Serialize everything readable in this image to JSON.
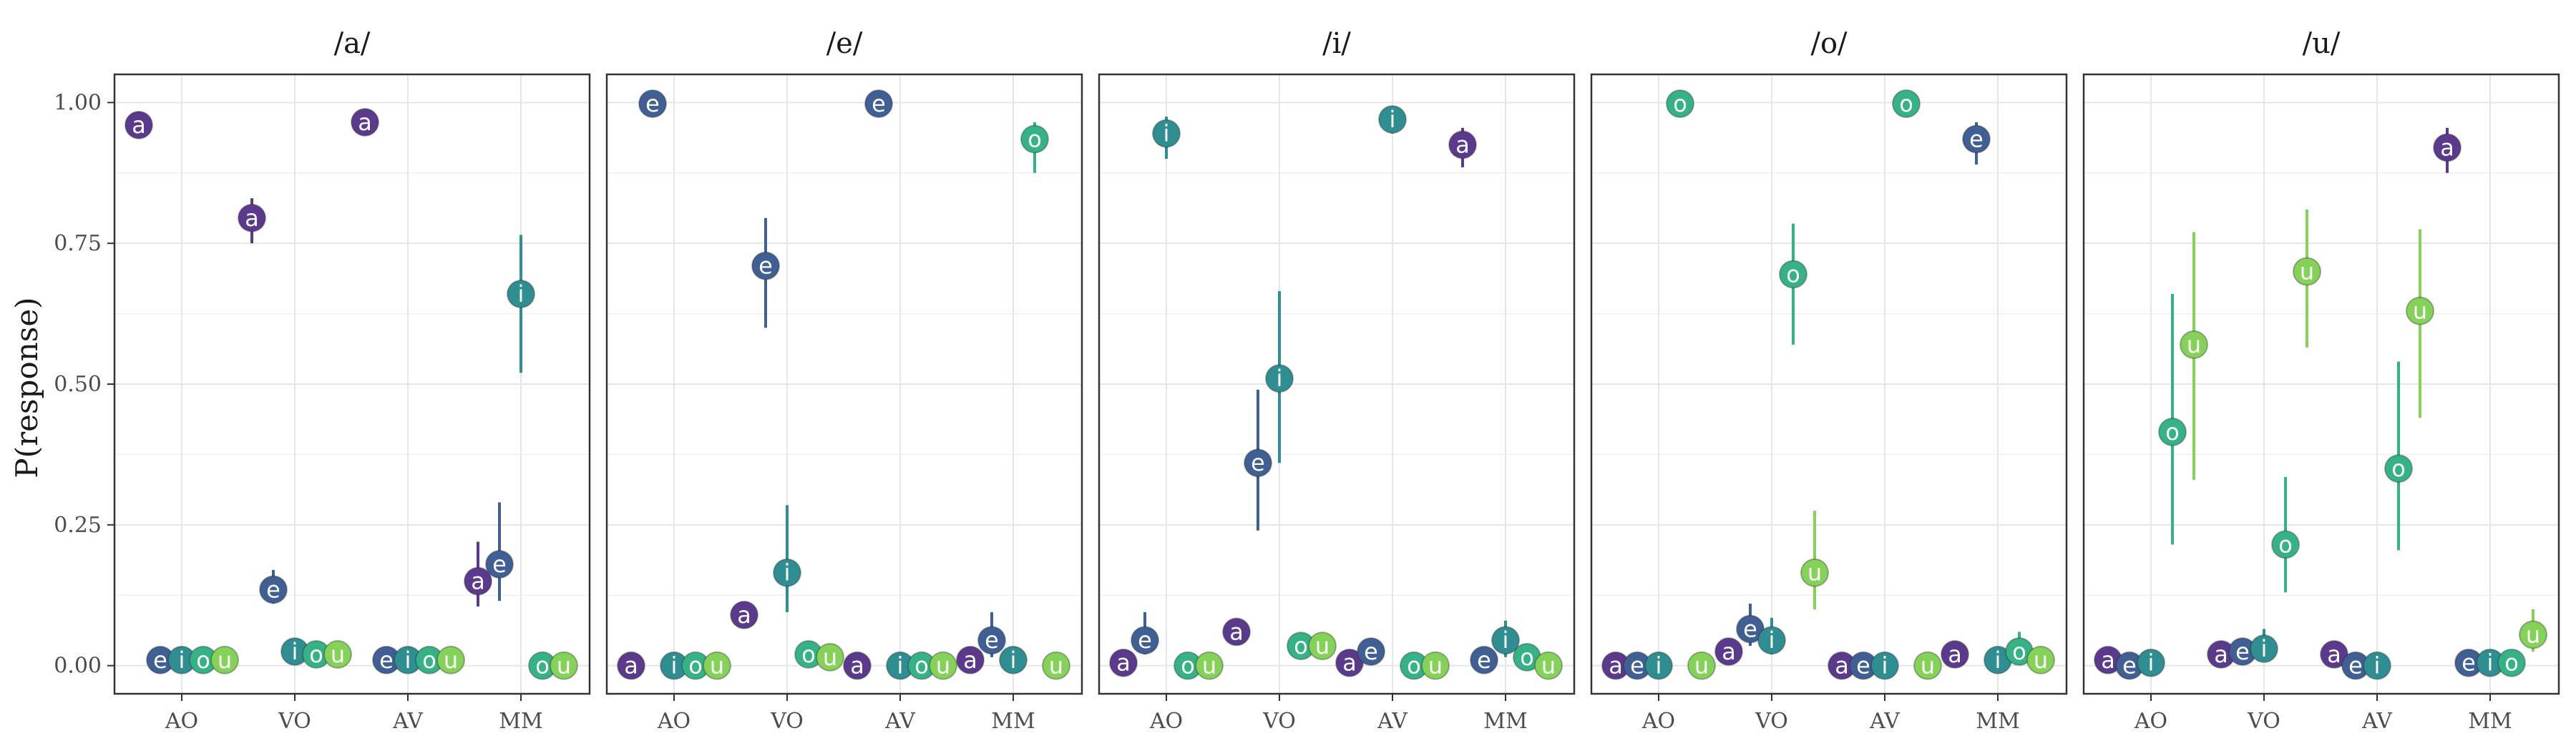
{
  "chart_data": {
    "type": "scatter",
    "ylabel": "P(response)",
    "ylim": [
      -0.05,
      1.05
    ],
    "y_ticks": [
      0,
      0.25,
      0.5,
      0.75,
      1
    ],
    "y_tick_labels": [
      "0.00",
      "0.25",
      "0.50",
      "0.75",
      "1.00"
    ],
    "conditions": [
      "AO",
      "VO",
      "AV",
      "MM"
    ],
    "responses": [
      "a",
      "e",
      "i",
      "o",
      "u"
    ],
    "response_colors": {
      "a": "#5b3a8e",
      "e": "#3f5f95",
      "i": "#2f8e92",
      "o": "#35b387",
      "u": "#84d257"
    },
    "grid": true,
    "legend": "none",
    "facets": [
      {
        "title": "/a/",
        "points": [
          {
            "condition": "AO",
            "response": "a",
            "y": 0.96,
            "ymin": 0.94,
            "ymax": 0.975
          },
          {
            "condition": "AO",
            "response": "e",
            "y": 0.01
          },
          {
            "condition": "AO",
            "response": "i",
            "y": 0.01
          },
          {
            "condition": "AO",
            "response": "o",
            "y": 0.01
          },
          {
            "condition": "AO",
            "response": "u",
            "y": 0.01
          },
          {
            "condition": "VO",
            "response": "a",
            "y": 0.795,
            "ymin": 0.75,
            "ymax": 0.83
          },
          {
            "condition": "VO",
            "response": "e",
            "y": 0.135,
            "ymin": 0.11,
            "ymax": 0.17
          },
          {
            "condition": "VO",
            "response": "i",
            "y": 0.025
          },
          {
            "condition": "VO",
            "response": "o",
            "y": 0.02
          },
          {
            "condition": "VO",
            "response": "u",
            "y": 0.02
          },
          {
            "condition": "AV",
            "response": "a",
            "y": 0.965,
            "ymin": 0.945,
            "ymax": 0.98
          },
          {
            "condition": "AV",
            "response": "e",
            "y": 0.01
          },
          {
            "condition": "AV",
            "response": "i",
            "y": 0.01
          },
          {
            "condition": "AV",
            "response": "o",
            "y": 0.01
          },
          {
            "condition": "AV",
            "response": "u",
            "y": 0.01
          },
          {
            "condition": "MM",
            "response": "a",
            "y": 0.15,
            "ymin": 0.105,
            "ymax": 0.22
          },
          {
            "condition": "MM",
            "response": "e",
            "y": 0.18,
            "ymin": 0.115,
            "ymax": 0.29
          },
          {
            "condition": "MM",
            "response": "i",
            "y": 0.66,
            "ymin": 0.52,
            "ymax": 0.765
          },
          {
            "condition": "MM",
            "response": "o",
            "y": 0.0
          },
          {
            "condition": "MM",
            "response": "u",
            "y": 0.0
          }
        ]
      },
      {
        "title": "/e/",
        "points": [
          {
            "condition": "AO",
            "response": "a",
            "y": 0.0
          },
          {
            "condition": "AO",
            "response": "e",
            "y": 0.998
          },
          {
            "condition": "AO",
            "response": "i",
            "y": 0.0
          },
          {
            "condition": "AO",
            "response": "o",
            "y": 0.0
          },
          {
            "condition": "AO",
            "response": "u",
            "y": 0.0
          },
          {
            "condition": "VO",
            "response": "a",
            "y": 0.09
          },
          {
            "condition": "VO",
            "response": "e",
            "y": 0.71,
            "ymin": 0.6,
            "ymax": 0.795
          },
          {
            "condition": "VO",
            "response": "i",
            "y": 0.165,
            "ymin": 0.095,
            "ymax": 0.285
          },
          {
            "condition": "VO",
            "response": "o",
            "y": 0.02
          },
          {
            "condition": "VO",
            "response": "u",
            "y": 0.015
          },
          {
            "condition": "AV",
            "response": "a",
            "y": 0.0
          },
          {
            "condition": "AV",
            "response": "e",
            "y": 0.998
          },
          {
            "condition": "AV",
            "response": "i",
            "y": 0.0
          },
          {
            "condition": "AV",
            "response": "o",
            "y": 0.0
          },
          {
            "condition": "AV",
            "response": "u",
            "y": 0.0
          },
          {
            "condition": "MM",
            "response": "a",
            "y": 0.01
          },
          {
            "condition": "MM",
            "response": "e",
            "y": 0.045,
            "ymin": 0.015,
            "ymax": 0.095
          },
          {
            "condition": "MM",
            "response": "i",
            "y": 0.01
          },
          {
            "condition": "MM",
            "response": "o",
            "y": 0.935,
            "ymin": 0.875,
            "ymax": 0.965
          },
          {
            "condition": "MM",
            "response": "u",
            "y": 0.0
          }
        ]
      },
      {
        "title": "/i/",
        "points": [
          {
            "condition": "AO",
            "response": "a",
            "y": 0.005
          },
          {
            "condition": "AO",
            "response": "e",
            "y": 0.045,
            "ymin": 0.02,
            "ymax": 0.095
          },
          {
            "condition": "AO",
            "response": "i",
            "y": 0.945,
            "ymin": 0.9,
            "ymax": 0.975
          },
          {
            "condition": "AO",
            "response": "o",
            "y": 0.0
          },
          {
            "condition": "AO",
            "response": "u",
            "y": 0.0
          },
          {
            "condition": "VO",
            "response": "a",
            "y": 0.06
          },
          {
            "condition": "VO",
            "response": "e",
            "y": 0.36,
            "ymin": 0.24,
            "ymax": 0.49
          },
          {
            "condition": "VO",
            "response": "i",
            "y": 0.51,
            "ymin": 0.36,
            "ymax": 0.665
          },
          {
            "condition": "VO",
            "response": "o",
            "y": 0.035
          },
          {
            "condition": "VO",
            "response": "u",
            "y": 0.035
          },
          {
            "condition": "AV",
            "response": "a",
            "y": 0.005
          },
          {
            "condition": "AV",
            "response": "e",
            "y": 0.025
          },
          {
            "condition": "AV",
            "response": "i",
            "y": 0.97,
            "ymin": 0.945,
            "ymax": 0.985
          },
          {
            "condition": "AV",
            "response": "o",
            "y": 0.0
          },
          {
            "condition": "AV",
            "response": "u",
            "y": 0.0
          },
          {
            "condition": "MM",
            "response": "a",
            "y": 0.925,
            "ymin": 0.885,
            "ymax": 0.955
          },
          {
            "condition": "MM",
            "response": "e",
            "y": 0.01
          },
          {
            "condition": "MM",
            "response": "i",
            "y": 0.045,
            "ymin": 0.015,
            "ymax": 0.08
          },
          {
            "condition": "MM",
            "response": "o",
            "y": 0.015
          },
          {
            "condition": "MM",
            "response": "u",
            "y": 0.0
          }
        ]
      },
      {
        "title": "/o/",
        "points": [
          {
            "condition": "AO",
            "response": "a",
            "y": 0.0
          },
          {
            "condition": "AO",
            "response": "e",
            "y": 0.0
          },
          {
            "condition": "AO",
            "response": "i",
            "y": 0.0
          },
          {
            "condition": "AO",
            "response": "o",
            "y": 0.998
          },
          {
            "condition": "AO",
            "response": "u",
            "y": 0.0
          },
          {
            "condition": "VO",
            "response": "a",
            "y": 0.025
          },
          {
            "condition": "VO",
            "response": "e",
            "y": 0.065,
            "ymin": 0.035,
            "ymax": 0.11
          },
          {
            "condition": "VO",
            "response": "i",
            "y": 0.045,
            "ymin": 0.02,
            "ymax": 0.085
          },
          {
            "condition": "VO",
            "response": "o",
            "y": 0.695,
            "ymin": 0.57,
            "ymax": 0.785
          },
          {
            "condition": "VO",
            "response": "u",
            "y": 0.165,
            "ymin": 0.1,
            "ymax": 0.275
          },
          {
            "condition": "AV",
            "response": "a",
            "y": 0.0
          },
          {
            "condition": "AV",
            "response": "e",
            "y": 0.0
          },
          {
            "condition": "AV",
            "response": "i",
            "y": 0.0
          },
          {
            "condition": "AV",
            "response": "o",
            "y": 0.998
          },
          {
            "condition": "AV",
            "response": "u",
            "y": 0.0
          },
          {
            "condition": "MM",
            "response": "a",
            "y": 0.02
          },
          {
            "condition": "MM",
            "response": "e",
            "y": 0.935,
            "ymin": 0.89,
            "ymax": 0.965
          },
          {
            "condition": "MM",
            "response": "i",
            "y": 0.01
          },
          {
            "condition": "MM",
            "response": "o",
            "y": 0.025,
            "ymin": 0.005,
            "ymax": 0.06
          },
          {
            "condition": "MM",
            "response": "u",
            "y": 0.01
          }
        ]
      },
      {
        "title": "/u/",
        "points": [
          {
            "condition": "AO",
            "response": "a",
            "y": 0.01
          },
          {
            "condition": "AO",
            "response": "e",
            "y": 0.0
          },
          {
            "condition": "AO",
            "response": "i",
            "y": 0.005
          },
          {
            "condition": "AO",
            "response": "o",
            "y": 0.415,
            "ymin": 0.215,
            "ymax": 0.66
          },
          {
            "condition": "AO",
            "response": "u",
            "y": 0.57,
            "ymin": 0.33,
            "ymax": 0.77
          },
          {
            "condition": "VO",
            "response": "a",
            "y": 0.02
          },
          {
            "condition": "VO",
            "response": "e",
            "y": 0.025
          },
          {
            "condition": "VO",
            "response": "i",
            "y": 0.03,
            "ymin": 0.01,
            "ymax": 0.065
          },
          {
            "condition": "VO",
            "response": "o",
            "y": 0.215,
            "ymin": 0.13,
            "ymax": 0.335
          },
          {
            "condition": "VO",
            "response": "u",
            "y": 0.7,
            "ymin": 0.565,
            "ymax": 0.81
          },
          {
            "condition": "AV",
            "response": "a",
            "y": 0.02
          },
          {
            "condition": "AV",
            "response": "e",
            "y": 0.0
          },
          {
            "condition": "AV",
            "response": "i",
            "y": 0.0
          },
          {
            "condition": "AV",
            "response": "o",
            "y": 0.35,
            "ymin": 0.205,
            "ymax": 0.54
          },
          {
            "condition": "AV",
            "response": "u",
            "y": 0.63,
            "ymin": 0.44,
            "ymax": 0.775
          },
          {
            "condition": "MM",
            "response": "a",
            "y": 0.92,
            "ymin": 0.875,
            "ymax": 0.955
          },
          {
            "condition": "MM",
            "response": "e",
            "y": 0.005
          },
          {
            "condition": "MM",
            "response": "i",
            "y": 0.005
          },
          {
            "condition": "MM",
            "response": "o",
            "y": 0.005
          },
          {
            "condition": "MM",
            "response": "u",
            "y": 0.055,
            "ymin": 0.025,
            "ymax": 0.1
          }
        ]
      }
    ]
  }
}
